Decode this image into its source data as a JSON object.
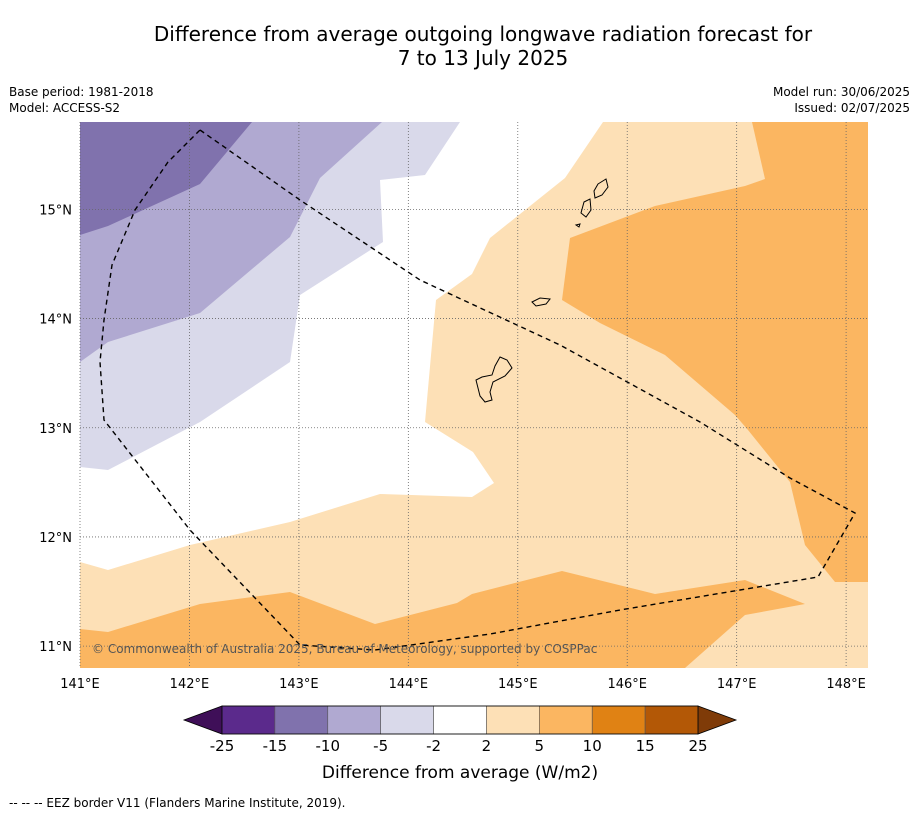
{
  "title": {
    "line1": "Difference from average outgoing longwave radiation forecast for",
    "line2": "7 to 13 July 2025"
  },
  "info": {
    "base_period": "Base period: 1981-2018",
    "model": "Model: ACCESS-S2",
    "model_run": "Model run: 30/06/2025",
    "issued": "Issued: 02/07/2025"
  },
  "map": {
    "lon_range": [
      141,
      148.2
    ],
    "lat_range": [
      10.8,
      15.8
    ],
    "lon_ticks": [
      141,
      142,
      143,
      144,
      145,
      146,
      147,
      148
    ],
    "lon_labels": [
      "141°E",
      "142°E",
      "143°E",
      "144°E",
      "145°E",
      "146°E",
      "147°E",
      "148°E"
    ],
    "lat_ticks": [
      11,
      12,
      13,
      14,
      15
    ],
    "lat_labels": [
      "11°N",
      "12°N",
      "13°N",
      "14°N",
      "15°N"
    ],
    "gridlines": true,
    "copyright": "© Commonwealth of Australia 2025, Bureau of Meteorology, supported by COSPPac"
  },
  "colorbar": {
    "labels": [
      "-25",
      "-15",
      "-10",
      "-5",
      "-2",
      "2",
      "5",
      "10",
      "15",
      "25"
    ],
    "colors": [
      "#5b2a8c",
      "#8072ad",
      "#b0a9d1",
      "#d9d9ea",
      "#ffffff",
      "#fde0b6",
      "#fbb661",
      "#e08214",
      "#b35806"
    ],
    "under_color": "#3f0f58",
    "over_color": "#7f3b08",
    "title": "Difference from average (W/m2)"
  },
  "footnote": "-- -- -- EEZ border V11 (Flanders Marine Institute, 2019)."
}
